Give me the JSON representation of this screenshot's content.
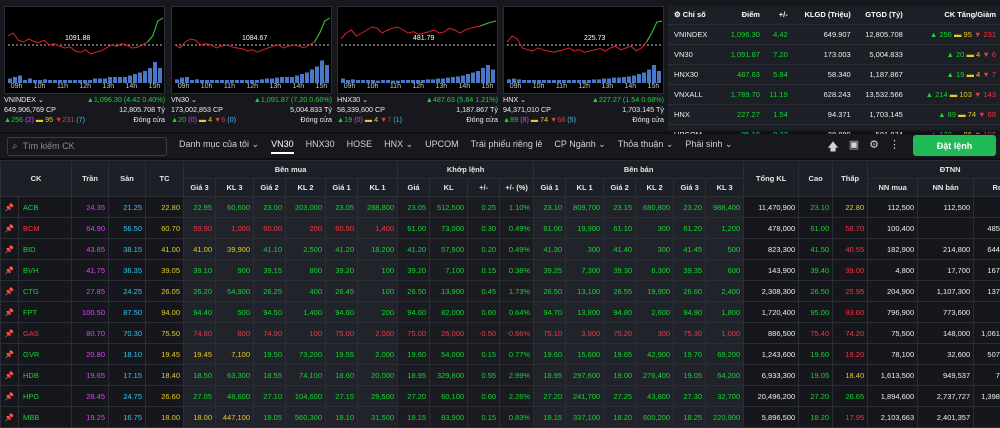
{
  "charts": [
    {
      "name": "VNINDEX",
      "ref": "1091.88",
      "line1_left": "VNINDEX",
      "line1_right": "1,096.30 (4.42 0.40%)",
      "line2_left": "649,906,769 CP",
      "line2_right": "12,805.708 Tỷ",
      "up": "256",
      "up_ceil": "(2)",
      "flat": "95",
      "down": "231",
      "down_floor": "(7)",
      "status": "Đóng cửa",
      "color": "g",
      "line": [
        0.35,
        0.3,
        0.42,
        0.45,
        0.4,
        0.44,
        0.46,
        0.42,
        0.5,
        0.48,
        0.52,
        0.55,
        0.53,
        0.6,
        0.62,
        0.58,
        0.65,
        0.62,
        0.6,
        0.55,
        0.5,
        0.52,
        0.48,
        0.5,
        0.55,
        0.54,
        0.5,
        0.45,
        0.35,
        0.1,
        0.05
      ],
      "vol": [
        0.15,
        0.2,
        0.25,
        0.1,
        0.15,
        0.1,
        0.1,
        0.12,
        0.1,
        0.1,
        0.1,
        0.1,
        0.1,
        0.1,
        0.1,
        0.1,
        0.1,
        0.15,
        0.15,
        0.15,
        0.2,
        0.2,
        0.2,
        0.2,
        0.25,
        0.3,
        0.35,
        0.4,
        0.5,
        0.7,
        0.5
      ]
    },
    {
      "name": "VN30",
      "ref": "1084.67",
      "line1_left": "VN30",
      "line1_right": "1,091.87 (7.20 0.66%)",
      "line2_left": "173,002,853 CP",
      "line2_right": "5,004.833 Tỷ",
      "up": "20",
      "up_ceil": "(0)",
      "flat": "4",
      "down": "6",
      "down_floor": "(0)",
      "status": "Đóng cửa",
      "color": "g",
      "line": [
        0.5,
        0.55,
        0.45,
        0.4,
        0.42,
        0.5,
        0.48,
        0.5,
        0.55,
        0.52,
        0.5,
        0.53,
        0.55,
        0.56,
        0.6,
        0.58,
        0.62,
        0.58,
        0.55,
        0.52,
        0.5,
        0.55,
        0.52,
        0.5,
        0.52,
        0.55,
        0.5,
        0.45,
        0.3,
        0.1,
        0.05
      ],
      "vol": [
        0.12,
        0.18,
        0.2,
        0.1,
        0.12,
        0.1,
        0.1,
        0.1,
        0.1,
        0.1,
        0.1,
        0.1,
        0.1,
        0.1,
        0.1,
        0.1,
        0.1,
        0.12,
        0.15,
        0.15,
        0.18,
        0.2,
        0.2,
        0.2,
        0.25,
        0.3,
        0.35,
        0.45,
        0.55,
        0.75,
        0.6
      ]
    },
    {
      "name": "HNX30",
      "ref": "481.79",
      "line1_left": "HNX30",
      "line1_right": "487.63 (5.84 1.21%)",
      "line2_left": "58,339,600 CP",
      "line2_right": "1,187.867 Tỷ",
      "up": "19",
      "up_ceil": "(0)",
      "flat": "4",
      "down": "7",
      "down_floor": "(1)",
      "status": "Đóng cửa",
      "color": "g",
      "line": [
        0.4,
        0.3,
        0.25,
        0.35,
        0.3,
        0.25,
        0.2,
        0.22,
        0.3,
        0.25,
        0.22,
        0.2,
        0.25,
        0.3,
        0.28,
        0.32,
        0.3,
        0.28,
        0.25,
        0.3,
        0.28,
        0.22,
        0.25,
        0.3,
        0.25,
        0.22,
        0.2,
        0.18,
        0.15,
        0.12,
        0.1
      ],
      "vol": [
        0.15,
        0.1,
        0.12,
        0.1,
        0.1,
        0.1,
        0.1,
        0.08,
        0.1,
        0.1,
        0.08,
        0.08,
        0.1,
        0.1,
        0.1,
        0.1,
        0.1,
        0.12,
        0.12,
        0.15,
        0.15,
        0.18,
        0.2,
        0.22,
        0.25,
        0.3,
        0.35,
        0.4,
        0.5,
        0.6,
        0.45
      ]
    },
    {
      "name": "HNX",
      "ref": "225.73",
      "line1_left": "HNX",
      "line1_right": "227.27 (1.54 0.68%)",
      "line2_left": "94,371,010 CP",
      "line2_right": "1,703.145 Tỷ",
      "up": "89",
      "up_ceil": "(8)",
      "flat": "74",
      "down": "68",
      "down_floor": "(5)",
      "status": "Đóng cửa",
      "color": "g",
      "line": [
        0.45,
        0.35,
        0.4,
        0.55,
        0.58,
        0.6,
        0.55,
        0.58,
        0.6,
        0.62,
        0.6,
        0.58,
        0.55,
        0.6,
        0.58,
        0.62,
        0.6,
        0.58,
        0.56,
        0.6,
        0.55,
        0.52,
        0.58,
        0.55,
        0.52,
        0.6,
        0.55,
        0.45,
        0.3,
        0.12,
        0.1
      ],
      "vol": [
        0.12,
        0.15,
        0.12,
        0.1,
        0.1,
        0.1,
        0.1,
        0.1,
        0.1,
        0.1,
        0.1,
        0.1,
        0.1,
        0.1,
        0.1,
        0.1,
        0.1,
        0.12,
        0.12,
        0.15,
        0.15,
        0.18,
        0.18,
        0.2,
        0.22,
        0.25,
        0.3,
        0.35,
        0.45,
        0.6,
        0.4
      ]
    }
  ],
  "times": [
    "09h",
    "10h",
    "11h",
    "12h",
    "13h",
    "14h",
    "15h"
  ],
  "summary": {
    "headers": [
      "Chỉ số",
      "Điểm",
      "+/-",
      "KLGD (Triệu)",
      "GTGD (Tỷ)",
      "CK Tăng/Giảm"
    ],
    "rows": [
      {
        "name": "VNINDEX",
        "point": "1,096.30",
        "change": "4.42",
        "vol": "649.907",
        "val": "12,805.708",
        "up": "256",
        "flat": "95",
        "down": "231"
      },
      {
        "name": "VN30",
        "point": "1,091.87",
        "change": "7.20",
        "vol": "173.003",
        "val": "5,004.833",
        "up": "20",
        "flat": "4",
        "down": "6"
      },
      {
        "name": "HNX30",
        "point": "487.63",
        "change": "5.84",
        "vol": "58.340",
        "val": "1,187.867",
        "up": "19",
        "flat": "4",
        "down": "7"
      },
      {
        "name": "VNXALL",
        "point": "1,789.70",
        "change": "11.19",
        "vol": "628.243",
        "val": "13,532.566",
        "up": "214",
        "flat": "103",
        "down": "143"
      },
      {
        "name": "HNX",
        "point": "227.27",
        "change": "1.54",
        "vol": "94.371",
        "val": "1,703.145",
        "up": "89",
        "flat": "74",
        "down": "68"
      },
      {
        "name": "UPCOM",
        "point": "85.10",
        "change": "0.22",
        "vol": "38.889",
        "val": "581.874",
        "up": "132",
        "flat": "86",
        "down": "106"
      }
    ]
  },
  "toolbar": {
    "search_placeholder": "Tìm kiếm CK",
    "tabs": [
      "Danh mục của tôi ⌄",
      "VN30",
      "HNX30",
      "HOSE",
      "HNX ⌄",
      "UPCOM",
      "Trái phiếu riêng lẻ",
      "CP Ngành ⌄",
      "Thỏa thuận ⌄",
      "Phái sinh ⌄"
    ],
    "order_label": "Đặt lệnh"
  },
  "table": {
    "group_headers": {
      "ck": "CK",
      "tran": "Trần",
      "san": "Sàn",
      "tc": "TC",
      "ben_mua": "Bên mua",
      "khop": "Khớp lệnh",
      "ben_ban": "Bên bán",
      "tong_kl": "Tổng KL",
      "cao": "Cao",
      "thap": "Thấp",
      "dtnn": "ĐTNN"
    },
    "sub_headers": [
      "Giá 3",
      "KL 3",
      "Giá 2",
      "KL 2",
      "Giá 1",
      "KL 1",
      "Giá",
      "KL",
      "+/-",
      "+/- (%)",
      "Giá 1",
      "KL 1",
      "Giá 2",
      "KL 2",
      "Giá 3",
      "KL 3",
      "NN mua",
      "NN bán",
      "Room"
    ],
    "rows": [
      {
        "ck": "ACB",
        "c": "g",
        "tran": "24.35",
        "san": "21.25",
        "tc": "22.80",
        "b3": "22.95",
        "bk3": "60,600",
        "b2": "23.00",
        "bk2": "203,000",
        "b1": "23.05",
        "bk1": "288,800",
        "p": "23.05",
        "kl": "512,500",
        "d": "0.25",
        "dp": "1.10%",
        "s1": "23.10",
        "sk1": "809,700",
        "s2": "23.15",
        "sk2": "680,800",
        "s3": "23.20",
        "sk3": "988,400",
        "tkl": "11,470,900",
        "cao": "23.10",
        "thap": "22.80",
        "nnm": "112,500",
        "nnb": "112,500",
        "room": "",
        "cc": {
          "b3": "g",
          "b2": "g",
          "b1": "g",
          "p": "g",
          "s1": "g",
          "s2": "g",
          "s3": "g",
          "cao": "g",
          "thap": "y"
        }
      },
      {
        "ck": "BCM",
        "c": "r",
        "tran": "64.90",
        "san": "56.50",
        "tc": "60.70",
        "b3": "59.90",
        "bk3": "1,000",
        "b2": "60.00",
        "bk2": "200",
        "b1": "60.50",
        "bk1": "1,400",
        "p": "61.00",
        "kl": "73,000",
        "d": "0.30",
        "dp": "0.49%",
        "s1": "61.00",
        "sk1": "19,900",
        "s2": "61.10",
        "sk2": "300",
        "s3": "61.20",
        "sk3": "1,200",
        "tkl": "478,000",
        "cao": "61.00",
        "thap": "58.70",
        "nnm": "100,400",
        "nnb": "",
        "room": "485,507,892",
        "cc": {
          "b3": "r",
          "b2": "r",
          "b1": "r",
          "p": "g",
          "s1": "g",
          "s2": "g",
          "s3": "g",
          "cao": "g",
          "thap": "r"
        }
      },
      {
        "ck": "BID",
        "c": "g",
        "tran": "43.85",
        "san": "38.15",
        "tc": "41.00",
        "b3": "41.00",
        "bk3": "39,900",
        "b2": "41.10",
        "bk2": "2,500",
        "b1": "41.20",
        "bk1": "18,200",
        "p": "41.20",
        "kl": "57,900",
        "d": "0.20",
        "dp": "0.49%",
        "s1": "41.30",
        "sk1": "300",
        "s2": "41.40",
        "sk2": "300",
        "s3": "41.45",
        "sk3": "500",
        "tkl": "823,300",
        "cao": "41.50",
        "thap": "40.55",
        "nnm": "182,900",
        "nnb": "214,800",
        "room": "644,729,684",
        "cc": {
          "b3": "y",
          "b2": "g",
          "b1": "g",
          "p": "g",
          "s1": "g",
          "s2": "g",
          "s3": "g",
          "cao": "g",
          "thap": "r"
        }
      },
      {
        "ck": "BVH",
        "c": "g",
        "tran": "41.75",
        "san": "36.35",
        "tc": "39.05",
        "b3": "39.10",
        "bk3": "900",
        "b2": "39.15",
        "bk2": "800",
        "b1": "39.20",
        "bk1": "100",
        "p": "39.20",
        "kl": "7,100",
        "d": "0.15",
        "dp": "0.38%",
        "s1": "39.25",
        "sk1": "7,300",
        "s2": "39.30",
        "sk2": "6,300",
        "s3": "39.35",
        "sk3": "600",
        "tkl": "143,900",
        "cao": "39.40",
        "thap": "39.00",
        "nnm": "4,800",
        "nnb": "17,700",
        "room": "167,531,024",
        "cc": {
          "b3": "g",
          "b2": "g",
          "b1": "g",
          "p": "g",
          "s1": "g",
          "s2": "g",
          "s3": "g",
          "cao": "g",
          "thap": "r"
        }
      },
      {
        "ck": "CTG",
        "c": "g",
        "tran": "27.85",
        "san": "24.25",
        "tc": "26.05",
        "b3": "26.20",
        "bk3": "54,900",
        "b2": "26.25",
        "bk2": "400",
        "b1": "26.45",
        "bk1": "100",
        "p": "26.50",
        "kl": "13,900",
        "d": "0.45",
        "dp": "1.73%",
        "s1": "26.50",
        "sk1": "13,100",
        "s2": "26.55",
        "sk2": "19,900",
        "s3": "26.60",
        "sk3": "2,400",
        "tkl": "2,308,300",
        "cao": "26.50",
        "thap": "25.95",
        "nnm": "204,900",
        "nnb": "1,107,300",
        "room": "137,679,639",
        "cc": {
          "b3": "g",
          "b2": "g",
          "b1": "g",
          "p": "g",
          "s1": "g",
          "s2": "g",
          "s3": "g",
          "cao": "g",
          "thap": "r"
        }
      },
      {
        "ck": "FPT",
        "c": "g",
        "tran": "100.50",
        "san": "87.50",
        "tc": "94.00",
        "b3": "94.40",
        "bk3": "500",
        "b2": "94.50",
        "bk2": "1,400",
        "b1": "94.60",
        "bk1": "200",
        "p": "94.60",
        "kl": "82,000",
        "d": "0.60",
        "dp": "0.64%",
        "s1": "94.70",
        "sk1": "13,800",
        "s2": "94.80",
        "sk2": "2,600",
        "s3": "94.90",
        "sk3": "1,800",
        "tkl": "1,720,400",
        "cao": "95.00",
        "thap": "93.60",
        "nnm": "796,900",
        "nnb": "773,600",
        "room": "",
        "cc": {
          "b3": "g",
          "b2": "g",
          "b1": "g",
          "p": "g",
          "s1": "g",
          "s2": "g",
          "s3": "g",
          "cao": "g",
          "thap": "r"
        }
      },
      {
        "ck": "GAS",
        "c": "r",
        "tran": "80.70",
        "san": "70.30",
        "tc": "75.50",
        "b3": "74.80",
        "bk3": "800",
        "b2": "74.90",
        "bk2": "100",
        "b1": "75.00",
        "bk1": "2,000",
        "p": "75.00",
        "kl": "26,000",
        "d": "-0.50",
        "dp": "-0.66%",
        "s1": "75.10",
        "sk1": "3,900",
        "s2": "75.20",
        "sk2": "300",
        "s3": "75.30",
        "sk3": "1,000",
        "tkl": "886,500",
        "cao": "75.40",
        "thap": "74.20",
        "nnm": "75,500",
        "nnb": "148,000",
        "room": "1,061,829,136",
        "cc": {
          "b3": "r",
          "b2": "r",
          "b1": "r",
          "p": "r",
          "s1": "r",
          "s2": "r",
          "s3": "r",
          "cao": "r",
          "thap": "r"
        }
      },
      {
        "ck": "GVR",
        "c": "g",
        "tran": "20.80",
        "san": "18.10",
        "tc": "19.45",
        "b3": "19.45",
        "bk3": "7,100",
        "b2": "19.50",
        "bk2": "73,200",
        "b1": "19.55",
        "bk1": "2,000",
        "p": "19.60",
        "kl": "54,000",
        "d": "0.15",
        "dp": "0.77%",
        "s1": "19.60",
        "sk1": "15,600",
        "s2": "19.65",
        "sk2": "42,900",
        "s3": "19.70",
        "sk3": "69,200",
        "tkl": "1,243,600",
        "cao": "19.60",
        "thap": "19.20",
        "nnm": "78,100",
        "nnb": "32,600",
        "room": "507,367,999",
        "cc": {
          "b3": "y",
          "b2": "g",
          "b1": "g",
          "p": "g",
          "s1": "g",
          "s2": "g",
          "s3": "g",
          "cao": "g",
          "thap": "r"
        }
      },
      {
        "ck": "HDB",
        "c": "g",
        "tran": "19.65",
        "san": "17.15",
        "tc": "18.40",
        "b3": "18.50",
        "bk3": "63,300",
        "b2": "18.55",
        "bk2": "74,100",
        "b1": "18.60",
        "bk1": "20,000",
        "p": "18.95",
        "kl": "329,800",
        "d": "0.55",
        "dp": "2.99%",
        "s1": "18.95",
        "sk1": "297,600",
        "s2": "19.00",
        "sk2": "276,400",
        "s3": "19.05",
        "sk3": "64,200",
        "tkl": "6,933,300",
        "cao": "19.05",
        "thap": "18.40",
        "nnm": "1,613,500",
        "nnb": "949,537",
        "room": "7,762,295",
        "cc": {
          "b3": "g",
          "b2": "g",
          "b1": "g",
          "p": "g",
          "s1": "g",
          "s2": "g",
          "s3": "g",
          "cao": "g",
          "thap": "y"
        }
      },
      {
        "ck": "HPG",
        "c": "g",
        "tran": "28.45",
        "san": "24.75",
        "tc": "26.60",
        "b3": "27.05",
        "bk3": "48,600",
        "b2": "27.10",
        "bk2": "104,600",
        "b1": "27.15",
        "bk1": "29,500",
        "p": "27.20",
        "kl": "60,100",
        "d": "0.60",
        "dp": "2.26%",
        "s1": "27.20",
        "sk1": "241,700",
        "s2": "27.25",
        "sk2": "43,800",
        "s3": "27.30",
        "sk3": "32,700",
        "tkl": "20,496,200",
        "cao": "27.20",
        "thap": "26.65",
        "nnm": "1,894,600",
        "nnb": "2,737,727",
        "room": "1,398,175,437",
        "cc": {
          "b3": "g",
          "b2": "g",
          "b1": "g",
          "p": "g",
          "s1": "g",
          "s2": "g",
          "s3": "g",
          "cao": "g",
          "thap": "g"
        }
      },
      {
        "ck": "MBB",
        "c": "g",
        "tran": "19.25",
        "san": "16.75",
        "tc": "18.00",
        "b3": "18.00",
        "bk3": "447,100",
        "b2": "18.05",
        "bk2": "560,300",
        "b1": "18.10",
        "bk1": "31,500",
        "p": "18.15",
        "kl": "83,900",
        "d": "0.15",
        "dp": "0.83%",
        "s1": "18.15",
        "sk1": "337,100",
        "s2": "18.20",
        "sk2": "600,200",
        "s3": "18.25",
        "sk3": "220,900",
        "tkl": "5,896,500",
        "cao": "18.20",
        "thap": "17.95",
        "nnm": "2,103,663",
        "nnb": "2,401,357",
        "room": "",
        "cc": {
          "b3": "y",
          "b2": "g",
          "b1": "g",
          "p": "g",
          "s1": "g",
          "s2": "g",
          "s3": "g",
          "cao": "g",
          "thap": "r"
        }
      }
    ]
  }
}
